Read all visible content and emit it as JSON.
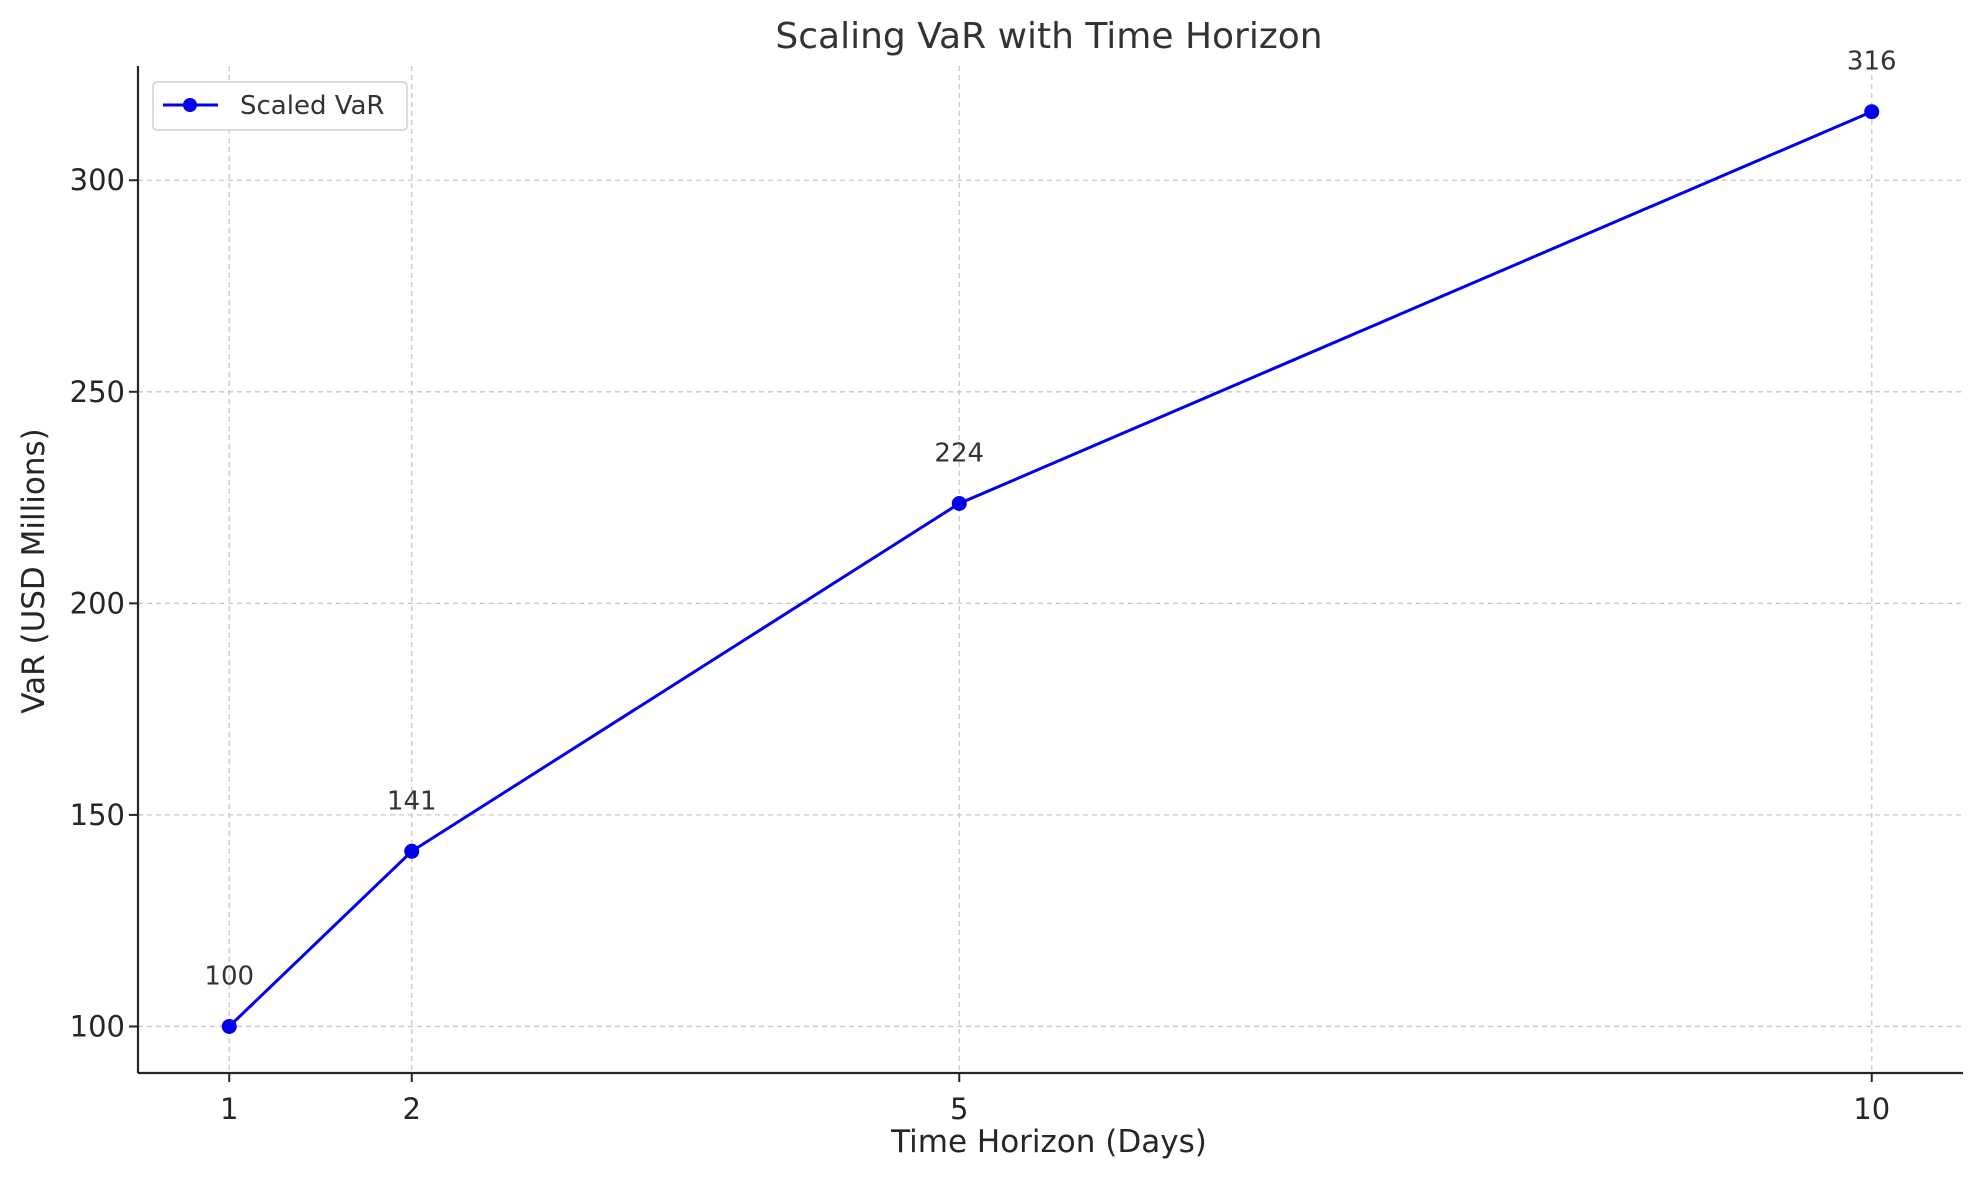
{
  "chart_data": {
    "type": "line",
    "title": "Scaling VaR with Time Horizon",
    "xlabel": "Time Horizon (Days)",
    "ylabel": "VaR (USD Millions)",
    "x": [
      1,
      2,
      5,
      10
    ],
    "x_ticks": [
      1,
      2,
      5,
      10
    ],
    "y_ticks": [
      100,
      150,
      200,
      250,
      300
    ],
    "xlim": [
      0.5,
      10.5
    ],
    "ylim": [
      89,
      327
    ],
    "series": [
      {
        "name": "Scaled VaR",
        "values": [
          100,
          141.4,
          223.6,
          316.2
        ],
        "labels": [
          "100",
          "141",
          "224",
          "316"
        ],
        "color": "#0000ee",
        "marker": "circle"
      }
    ],
    "grid": true,
    "legend_position": "top-left"
  }
}
